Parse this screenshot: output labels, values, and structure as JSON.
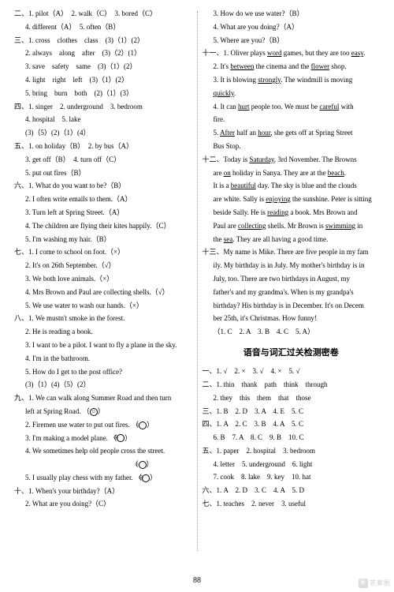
{
  "page_number": "88",
  "watermark": "答案圈",
  "left": [
    {
      "cls": "line",
      "html": "二、1. pilot（A）　2. walk（C）　3. bored（C）"
    },
    {
      "cls": "line sub",
      "html": "4. different（A）　5. often（B）"
    },
    {
      "cls": "line",
      "html": "三、1. cross　clothes　class　(3)（1）(2）"
    },
    {
      "cls": "line sub",
      "html": "2. always　along　after　(3)（2）(1）"
    },
    {
      "cls": "line sub",
      "html": "3. save　safety　same　(3)（1）(2）"
    },
    {
      "cls": "line sub",
      "html": "4. light　right　left　(3)（1）(2）"
    },
    {
      "cls": "line sub",
      "html": "5. bring　burn　both　(2)（1）(3）"
    },
    {
      "cls": "line",
      "html": "四、1. singer　2. underground　3. bedroom"
    },
    {
      "cls": "line sub",
      "html": "4. hospital　5. lake"
    },
    {
      "cls": "line sub",
      "html": "(3)（5）(2)（1）(4）"
    },
    {
      "cls": "line",
      "html": "五、1. on holiday（B）　2. by bus（A）"
    },
    {
      "cls": "line sub",
      "html": "3. get off（B）　4. turn off（C）"
    },
    {
      "cls": "line sub",
      "html": "5. put out fires（B）"
    },
    {
      "cls": "line",
      "html": "六、1. What do you want to be?（B）"
    },
    {
      "cls": "line sub",
      "html": "2. I often write emails to them.（A）"
    },
    {
      "cls": "line sub",
      "html": "3. Turn left at Spring Street.（A）"
    },
    {
      "cls": "line sub",
      "html": "4. The children are flying their kites happily.（C）"
    },
    {
      "cls": "line sub",
      "html": "5. I'm washing my hair.（B）"
    },
    {
      "cls": "line",
      "html": "七、1. I come to school on foot.（×）"
    },
    {
      "cls": "line sub",
      "html": "2. It's on 26th September.（√）"
    },
    {
      "cls": "line sub",
      "html": "3. We both love animals.（×）"
    },
    {
      "cls": "line sub",
      "html": "4. Mrs Brown and Paul are collecting shells.（√）"
    },
    {
      "cls": "line sub",
      "html": "5. We use water to wash our hands.（×）"
    },
    {
      "cls": "line",
      "html": "八、1. We mustn't smoke in the forest."
    },
    {
      "cls": "line sub",
      "html": "2. He is reading a book."
    },
    {
      "cls": "line sub",
      "html": "3. I want to be a pilot. I want to fly a plane in the sky."
    },
    {
      "cls": "line sub",
      "html": "4. I'm in the bathroom."
    },
    {
      "cls": "line sub",
      "html": "5. How do I get to the post office?"
    },
    {
      "cls": "line sub",
      "html": "(3)（1）(4)（5）(2）"
    },
    {
      "cls": "line",
      "html": "九、1. We can walk along Summer Road and then turn"
    },
    {
      "cls": "line cont",
      "html": "left at Spring Road. （<span class=\"icon\">☺</span>）"
    },
    {
      "cls": "line sub",
      "html": "2. Firemen use water to put out fires. （<span class=\"icon\">☺</span>）"
    },
    {
      "cls": "line sub",
      "html": "3. I'm making a model plane. （<span class=\"icon\">☹</span>）"
    },
    {
      "cls": "line sub",
      "html": "4. We sometimes help old people cross the street."
    },
    {
      "cls": "line",
      "html": "　　　　　　　　　　　　　　　　　（<span class=\"icon\">☺</span>）"
    },
    {
      "cls": "line sub",
      "html": "5. I usually play chess with my father. （<span class=\"icon\">☹</span>）"
    },
    {
      "cls": "line",
      "html": "十、1. When's your birthday?（A）"
    },
    {
      "cls": "line sub",
      "html": "2. What are you doing?（C）"
    }
  ],
  "right": [
    {
      "cls": "line sub",
      "html": "3. How do we use water?（B）"
    },
    {
      "cls": "line sub",
      "html": "4. What are you doing?（A）"
    },
    {
      "cls": "line sub",
      "html": "5. Where are you?（B）"
    },
    {
      "cls": "line",
      "html": "十一、1. Oliver plays <span class=\"u\">word</span> games, but they are too <span class=\"u\">easy</span>."
    },
    {
      "cls": "line sub",
      "html": "2. It's <span class=\"u\">between</span> the cinema and the <span class=\"u\">flower</span> shop."
    },
    {
      "cls": "line sub",
      "html": "3. It is blowing <span class=\"u\">strongly</span>. The windmill is moving"
    },
    {
      "cls": "line cont",
      "html": "<span class=\"u\">quickly</span>."
    },
    {
      "cls": "line sub",
      "html": "4. It can <span class=\"u\">hurt</span> people too. We must be <span class=\"u\">careful</span> with"
    },
    {
      "cls": "line cont",
      "html": "fire."
    },
    {
      "cls": "line sub",
      "html": "5. <span class=\"u\">After</span> half an <span class=\"u\">hour</span>, she gets off at Spring Street"
    },
    {
      "cls": "line cont",
      "html": "Bus Stop."
    },
    {
      "cls": "line",
      "html": "十二、Today is <span class=\"u\">Saturday</span>, 3rd November. The Browns"
    },
    {
      "cls": "line cont",
      "html": "are <span class=\"u\">on</span> holiday in Sanya. They are at the <span class=\"u\">beach</span>."
    },
    {
      "cls": "line sub2",
      "html": "It is a <span class=\"u\">beautiful</span> day. The sky is blue and the clouds"
    },
    {
      "cls": "line cont",
      "html": "are white. Sally is <span class=\"u\">enjoying</span> the sunshine. Peter is sitting"
    },
    {
      "cls": "line cont",
      "html": "beside Sally. He is <span class=\"u\">reading</span> a book. Mrs Brown and"
    },
    {
      "cls": "line cont",
      "html": "Paul are <span class=\"u\">collecting</span> shells. Mr Brown is <span class=\"u\">swimming</span> in"
    },
    {
      "cls": "line cont",
      "html": "the <span class=\"u\">sea</span>. They are all having a good time."
    },
    {
      "cls": "line",
      "html": "十三、My name is Mike. There are five people in my fam­"
    },
    {
      "cls": "line cont",
      "html": "ily. My birthday is in July. My mother's birthday is in"
    },
    {
      "cls": "line cont",
      "html": "July, too. There are two birthdays in August, my"
    },
    {
      "cls": "line cont",
      "html": "father's and my grandma's. When is my grandpa's"
    },
    {
      "cls": "line cont",
      "html": "birthday? His birthday is in December. It's on Decem­"
    },
    {
      "cls": "line cont",
      "html": "ber 25th, it's Christmas. How funny!"
    },
    {
      "cls": "line cont",
      "html": "（1. C　2. A　3. B　4. C　5. A）"
    }
  ],
  "section_title": "语音与词汇过关检测密卷",
  "right2": [
    {
      "cls": "line",
      "html": "一、1. √　2. ×　3. √　4. ×　5. √"
    },
    {
      "cls": "line",
      "html": "二、1. thin　thank　path　think　through"
    },
    {
      "cls": "line sub",
      "html": "2. they　this　them　that　those"
    },
    {
      "cls": "line",
      "html": "三、1. B　2. D　3. A　4. E　5. C"
    },
    {
      "cls": "line",
      "html": "四、1. A　2. C　3. B　4. A　5. C"
    },
    {
      "cls": "line sub",
      "html": "6. B　7. A　8. C　9. B　10. C"
    },
    {
      "cls": "line",
      "html": "五、1. paper　2. hospital　3. bedroom"
    },
    {
      "cls": "line sub",
      "html": "4. letter　5. underground　6. light"
    },
    {
      "cls": "line sub",
      "html": "7. cook　8. lake　9. key　10. hat"
    },
    {
      "cls": "line",
      "html": "六、1. A　2. D　3. C　4. A　5. D"
    },
    {
      "cls": "line",
      "html": "七、1. teaches　2. never　3. useful"
    }
  ]
}
